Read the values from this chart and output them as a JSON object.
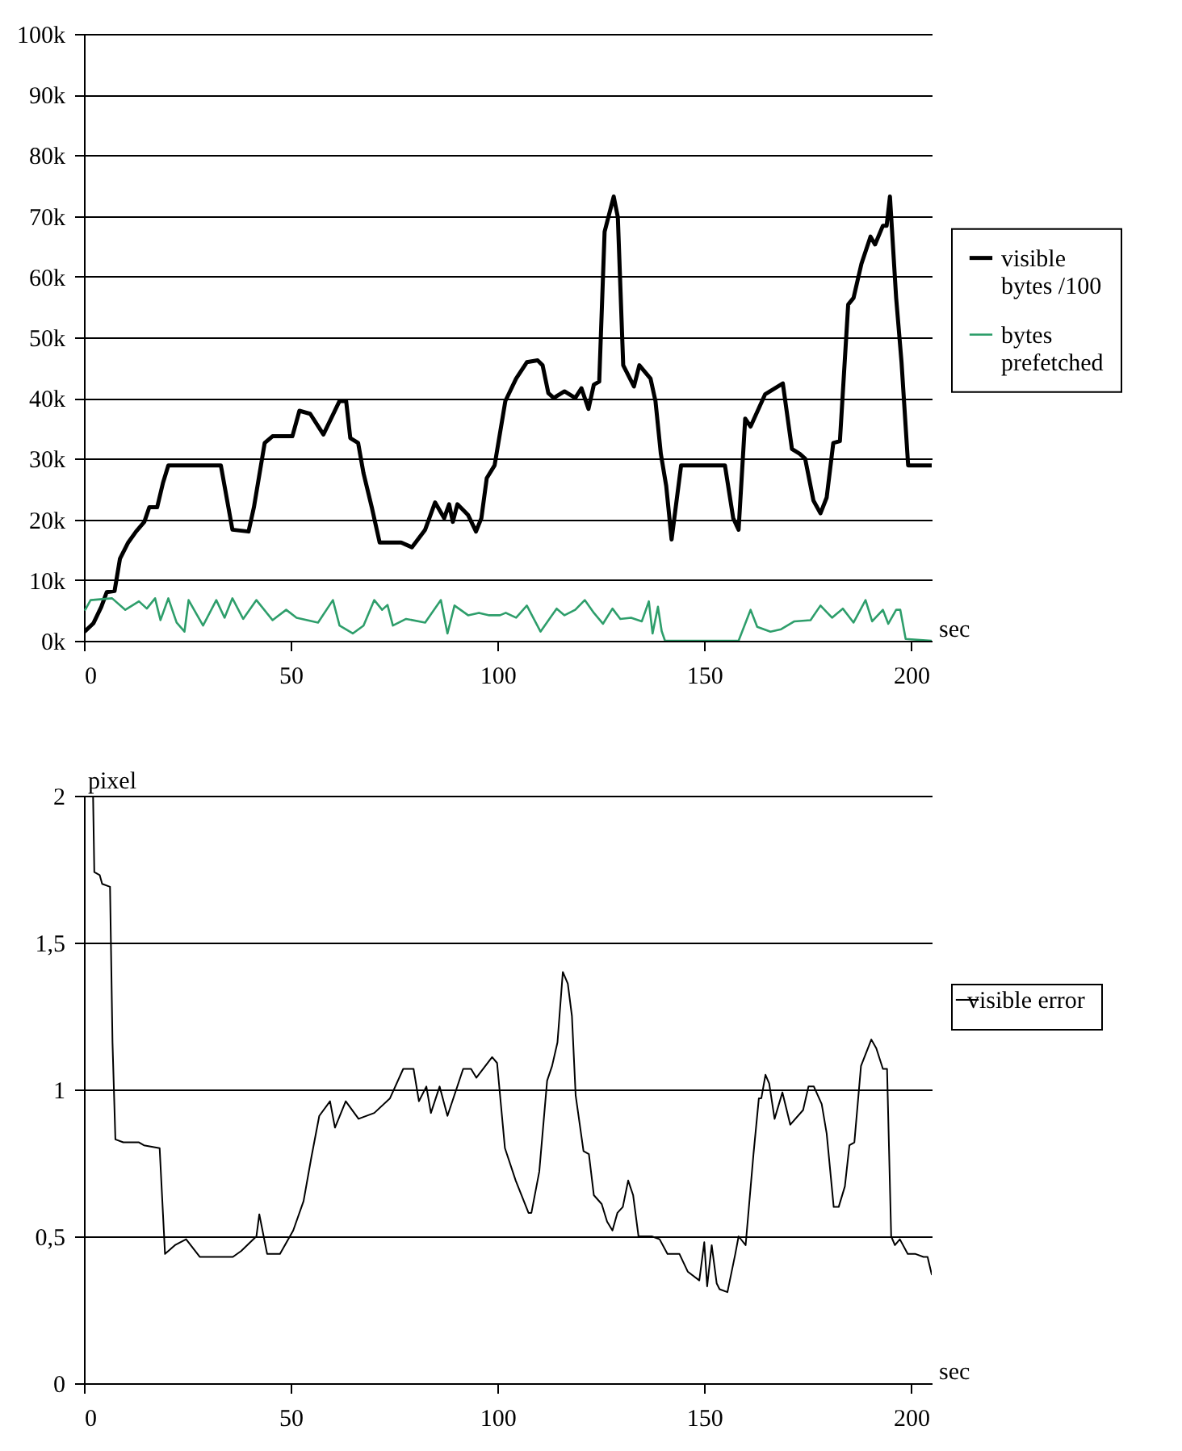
{
  "chart_data": [
    {
      "type": "line",
      "xlabel": "sec",
      "xlim": [
        0,
        205
      ],
      "xticks": [
        0,
        50,
        100,
        150,
        200
      ],
      "ylim": [
        0,
        100
      ],
      "yticks": [
        {
          "value": 0,
          "label": "0k"
        },
        {
          "value": 10,
          "label": "10k"
        },
        {
          "value": 20,
          "label": "20k"
        },
        {
          "value": 30,
          "label": "30k"
        },
        {
          "value": 40,
          "label": "40k"
        },
        {
          "value": 50,
          "label": "50k"
        },
        {
          "value": 60,
          "label": "60k"
        },
        {
          "value": 70,
          "label": "70k"
        },
        {
          "value": 80,
          "label": "80k"
        },
        {
          "value": 90,
          "label": "90k"
        },
        {
          "value": 100,
          "label": "100k"
        }
      ],
      "grid": "y",
      "legend": "right",
      "series": [
        {
          "name": "visible bytes /100",
          "color": "#000000",
          "x": [
            0.3,
            2.3,
            4.2,
            5.5,
            7.4,
            8.7,
            10.7,
            12.6,
            14.6,
            15.8,
            17.7,
            19.1,
            20.4,
            33.1,
            35.9,
            39.8,
            41.1,
            43.7,
            45.6,
            50.4,
            52.1,
            54.7,
            57.9,
            61.8,
            63.4,
            64.4,
            66.3,
            67.6,
            69.6,
            71.5,
            73.5,
            76.7,
            79.3,
            82.5,
            84.9,
            87.1,
            88.3,
            89.2,
            90.3,
            92.9,
            94.8,
            96.1,
            97.4,
            99.3,
            101.9,
            104.5,
            107.1,
            109.7,
            110.9,
            112.3,
            113.6,
            116.2,
            118.8,
            120.3,
            122,
            123.3,
            124.6,
            125.9,
            128.1,
            129.1,
            130.4,
            133,
            134.3,
            137,
            138.2,
            139.5,
            140.8,
            142.1,
            144.4,
            155,
            157,
            158.3,
            159.9,
            161.2,
            164.7,
            169,
            171.2,
            173.1,
            174.4,
            176.4,
            178.1,
            179.6,
            181.2,
            182.8,
            184.8,
            186.1,
            188,
            190.2,
            191.3,
            193.2,
            194.1,
            194.9,
            196.4,
            197.7,
            199.3,
            205
          ],
          "values": [
            1.6,
            2.9,
            5.6,
            8,
            8.2,
            13.5,
            16.2,
            18,
            19.6,
            22,
            22,
            26,
            28.9,
            28.9,
            18.3,
            18,
            22,
            32.6,
            33.7,
            33.7,
            37.9,
            37.4,
            34,
            39.5,
            39.5,
            33.4,
            32.6,
            27.6,
            22,
            16.2,
            16.2,
            16.2,
            15.4,
            18.3,
            22.8,
            20.2,
            22.5,
            19.6,
            22.5,
            20.7,
            18,
            20.2,
            26.8,
            28.9,
            39.5,
            43.2,
            45.9,
            46.2,
            45.4,
            40.8,
            40,
            41.1,
            40,
            41.6,
            38.2,
            42.2,
            42.7,
            67.4,
            73.2,
            69.8,
            45.4,
            41.9,
            45.4,
            43.2,
            39.5,
            30.8,
            25.5,
            16.7,
            28.9,
            28.9,
            20.2,
            18.3,
            36.6,
            35.3,
            40.6,
            42.4,
            31.6,
            30.8,
            30,
            23.1,
            21,
            23.6,
            32.6,
            32.9,
            55.4,
            56.5,
            62.1,
            66.6,
            65.3,
            68.4,
            68.4,
            73.2,
            56.5,
            45.9,
            28.9,
            28.9
          ]
        },
        {
          "name": "bytes prefetched",
          "color": "#2e9e6b",
          "x": [
            0.3,
            1.6,
            6.8,
            10,
            13.3,
            15.2,
            17.2,
            18.5,
            20.4,
            22.4,
            24.3,
            25.3,
            28.8,
            32,
            34,
            35.9,
            38.5,
            41.7,
            45.6,
            48.9,
            51.4,
            56.6,
            60.2,
            61.8,
            65,
            67.6,
            70.2,
            72.1,
            73.4,
            74.7,
            77.9,
            82.5,
            86.3,
            87.9,
            89.6,
            92.9,
            95.5,
            98,
            100.6,
            102,
            104.5,
            107.1,
            110.4,
            114.3,
            116.2,
            118.8,
            121.1,
            123.3,
            125.5,
            127.8,
            129.7,
            132.3,
            134.9,
            136.6,
            137.5,
            138.8,
            139.7,
            140.5,
            158.3,
            161.2,
            162.8,
            166,
            168.6,
            171.8,
            175.7,
            178.1,
            180.9,
            183.5,
            186.1,
            189,
            190.6,
            193.2,
            194.5,
            196.4,
            197.4,
            198.7,
            205
          ],
          "values": [
            5.1,
            6.7,
            7,
            5.1,
            6.5,
            5.3,
            7,
            3.4,
            7,
            3,
            1.5,
            6.7,
            2.5,
            6.7,
            3.8,
            7,
            3.6,
            6.7,
            3.4,
            5.1,
            3.8,
            3,
            6.7,
            2.5,
            1.2,
            2.5,
            6.7,
            5.1,
            5.9,
            2.5,
            3.6,
            3,
            6.7,
            1.2,
            5.8,
            4.2,
            4.6,
            4.2,
            4.2,
            4.6,
            3.8,
            5.8,
            1.5,
            5.3,
            4.2,
            5.1,
            6.7,
            4.6,
            2.8,
            5.3,
            3.6,
            3.8,
            3.2,
            6.5,
            1.2,
            5.6,
            1.6,
            0,
            0,
            5.1,
            2.3,
            1.5,
            1.9,
            3.2,
            3.4,
            5.8,
            3.8,
            5.3,
            3,
            6.7,
            3.2,
            5.1,
            2.8,
            5.1,
            5.1,
            0.3,
            0
          ]
        }
      ]
    },
    {
      "type": "line",
      "xlabel": "sec",
      "ylabel": "pixel",
      "xlim": [
        0,
        205
      ],
      "xticks": [
        0,
        50,
        100,
        150,
        200
      ],
      "ylim": [
        0,
        2
      ],
      "yticks": [
        0,
        {
          "value": 0.5,
          "label": "0,5"
        },
        1,
        {
          "value": 1.5,
          "label": "1,5"
        },
        2
      ],
      "grid": "y",
      "legend": "right",
      "series": [
        {
          "name": "visible error",
          "color": "#000000",
          "x": [
            2.2,
            2.5,
            3.8,
            4.4,
            6.3,
            6.9,
            7.6,
            9.5,
            13.3,
            14.5,
            18.3,
            19.6,
            22,
            24.7,
            28,
            36,
            38,
            41.7,
            42.4,
            44.3,
            47.4,
            50.6,
            53.1,
            55,
            56.9,
            59.5,
            60.7,
            63.3,
            66.4,
            70.2,
            74,
            77.2,
            79.7,
            81,
            82.8,
            83.9,
            86,
            87.9,
            91.7,
            93.6,
            94.9,
            98.7,
            99.9,
            101.8,
            104.4,
            107.5,
            108.2,
            110.1,
            112,
            113.2,
            114.5,
            115.8,
            117,
            118,
            118.9,
            120.8,
            122.1,
            123.3,
            125.2,
            126.5,
            127.8,
            129,
            130.3,
            131.6,
            132.8,
            134.1,
            137.3,
            139.2,
            141.1,
            144,
            146,
            148.8,
            150,
            150.7,
            151.8,
            153,
            153.7,
            155.6,
            157.5,
            158.3,
            160,
            161.9,
            163.2,
            163.8,
            164.8,
            165.7,
            167,
            168.9,
            170.8,
            173.9,
            175.2,
            176.5,
            178.4,
            179.6,
            181.3,
            182.5,
            184,
            185.1,
            186.3,
            187.9,
            190.4,
            191.6,
            193.2,
            194.2,
            195.2,
            196.1,
            197.3,
            199.2,
            201.1,
            203,
            204,
            205
          ],
          "values": [
            2,
            1.74,
            1.73,
            1.7,
            1.69,
            1.16,
            0.83,
            0.82,
            0.82,
            0.81,
            0.8,
            0.44,
            0.47,
            0.49,
            0.43,
            0.43,
            0.45,
            0.5,
            0.575,
            0.44,
            0.44,
            0.52,
            0.62,
            0.77,
            0.91,
            0.96,
            0.87,
            0.96,
            0.9,
            0.92,
            0.97,
            1.07,
            1.07,
            0.96,
            1.01,
            0.92,
            1.01,
            0.91,
            1.07,
            1.07,
            1.04,
            1.11,
            1.09,
            0.8,
            0.69,
            0.58,
            0.58,
            0.72,
            1.03,
            1.08,
            1.16,
            1.4,
            1.36,
            1.25,
            0.98,
            0.79,
            0.78,
            0.64,
            0.61,
            0.55,
            0.52,
            0.58,
            0.6,
            0.69,
            0.64,
            0.5,
            0.5,
            0.49,
            0.44,
            0.44,
            0.38,
            0.35,
            0.48,
            0.33,
            0.47,
            0.34,
            0.32,
            0.31,
            0.44,
            0.5,
            0.47,
            0.78,
            0.97,
            0.97,
            1.05,
            1.02,
            0.9,
            0.99,
            0.88,
            0.93,
            1.01,
            1.01,
            0.95,
            0.85,
            0.6,
            0.6,
            0.67,
            0.81,
            0.82,
            1.08,
            1.17,
            1.14,
            1.07,
            1.07,
            0.5,
            0.47,
            0.49,
            0.44,
            0.44,
            0.43,
            0.43,
            0.37
          ]
        }
      ]
    }
  ]
}
